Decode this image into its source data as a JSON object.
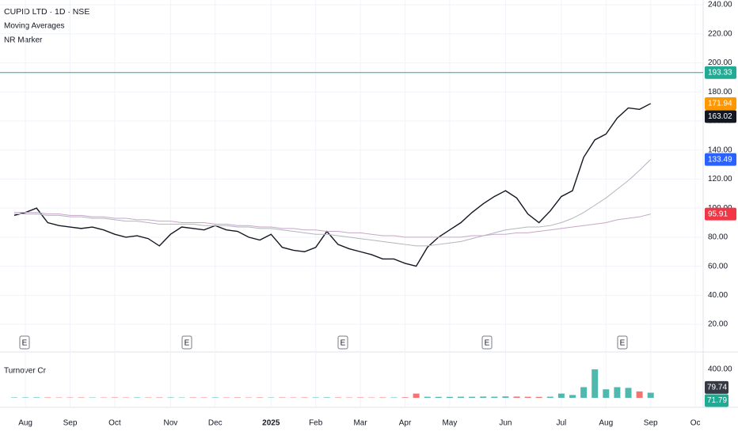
{
  "chart_data": {
    "type": "stock",
    "title": "CUPID LTD · 1D · NSE",
    "indicators": [
      "Moving Averages",
      "NR Marker"
    ],
    "categories": [
      null,
      "Aug",
      null,
      null,
      null,
      "Sep",
      null,
      null,
      null,
      "Oct",
      null,
      null,
      null,
      null,
      "Nov",
      null,
      null,
      null,
      "Dec",
      null,
      null,
      null,
      null,
      "2025",
      null,
      null,
      null,
      "Feb",
      null,
      null,
      null,
      "Mar",
      null,
      null,
      null,
      "Apr",
      null,
      null,
      null,
      "May",
      null,
      null,
      null,
      null,
      "Jun",
      null,
      null,
      null,
      null,
      "Jul",
      null,
      null,
      null,
      "Aug",
      null,
      null,
      null,
      "Sep",
      null,
      null,
      null,
      "Oc"
    ],
    "series": [
      {
        "color": "#131722",
        "values": [
          95,
          97,
          100,
          90,
          88,
          87,
          86,
          87,
          85,
          82,
          80,
          81,
          79,
          74,
          82,
          87,
          86,
          85,
          88,
          85,
          84,
          80,
          78,
          82,
          73,
          71,
          70,
          73,
          84,
          75,
          72,
          70,
          68,
          65,
          65,
          62,
          60,
          73,
          80,
          85,
          90,
          97,
          103,
          108,
          112,
          107,
          96,
          90,
          98,
          108,
          112,
          135,
          147,
          151,
          162,
          169,
          168,
          172,
          null,
          null,
          null,
          null
        ]
      },
      {
        "color": "#b2b5be",
        "values": [
          96,
          96,
          96,
          95,
          95,
          94,
          94,
          93,
          93,
          92,
          91,
          91,
          90,
          89,
          89,
          89,
          89,
          88,
          88,
          88,
          87,
          87,
          86,
          86,
          85,
          84,
          83,
          82,
          82,
          81,
          80,
          79,
          78,
          77,
          76,
          75,
          74,
          74,
          75,
          76,
          77,
          79,
          81,
          83,
          85,
          86,
          87,
          87,
          88,
          90,
          93,
          97,
          102,
          107,
          113,
          119,
          126,
          133.49,
          null,
          null,
          null,
          null
        ]
      },
      {
        "color": "#c7a6c9",
        "values": [
          97,
          97,
          97,
          96,
          96,
          95,
          95,
          94,
          94,
          93,
          93,
          92,
          92,
          91,
          91,
          90,
          90,
          90,
          89,
          89,
          88,
          88,
          87,
          87,
          86,
          86,
          85,
          85,
          84,
          84,
          83,
          83,
          82,
          81,
          81,
          80,
          80,
          80,
          80,
          80,
          80,
          81,
          81,
          82,
          82,
          83,
          83,
          84,
          85,
          86,
          87,
          88,
          89,
          90,
          92,
          93,
          94,
          95.91,
          null,
          null,
          null,
          null
        ]
      }
    ],
    "ylim": [
      3.7,
      243.3
    ],
    "yticks": [
      {
        "value": 240,
        "label": "240.00"
      },
      {
        "value": 220,
        "label": "220.00"
      },
      {
        "value": 200,
        "label": "200.00"
      },
      {
        "value": 180,
        "label": "180.00"
      },
      {
        "value": 160,
        "label": "160.00"
      },
      {
        "value": 140,
        "label": "140.00"
      },
      {
        "value": 120,
        "label": "120.00"
      },
      {
        "value": 100,
        "label": "100.00"
      },
      {
        "value": 80,
        "label": "80.00"
      },
      {
        "value": 60,
        "label": "60.00"
      },
      {
        "value": 40,
        "label": "40.00"
      },
      {
        "value": 20,
        "label": "20.00"
      }
    ],
    "price_labels": [
      {
        "value": 193.33,
        "label": "193.33",
        "color": "#22ab94"
      },
      {
        "value": 171.94,
        "label": "171.94",
        "color": "#ff9800"
      },
      {
        "value": 163.02,
        "label": "163.02",
        "color": "#131722"
      },
      {
        "value": 133.49,
        "label": "133.49",
        "color": "#2962ff"
      },
      {
        "value": 95.91,
        "label": "95.91",
        "color": "#f23645"
      }
    ],
    "earnings_markers": [
      "E",
      "E",
      "E",
      "E",
      "E"
    ],
    "turnover": {
      "title": "Turnover Cr",
      "values": [
        6,
        6,
        7,
        6,
        5,
        5,
        6,
        5,
        5,
        6,
        5,
        6,
        5,
        6,
        6,
        5,
        6,
        5,
        6,
        5,
        6,
        5,
        6,
        5,
        6,
        5,
        6,
        6,
        7,
        6,
        5,
        6,
        5,
        6,
        6,
        8,
        60,
        15,
        14,
        14,
        16,
        15,
        18,
        16,
        20,
        18,
        15,
        14,
        16,
        60,
        40,
        150,
        400,
        120,
        150,
        140,
        90,
        72,
        null,
        null,
        null,
        null
      ],
      "ylim": [
        -133,
        700
      ],
      "yticks": [
        {
          "value": 400,
          "label": "400.00"
        }
      ],
      "last_labels": [
        {
          "value": 79.74,
          "label": "79.74",
          "color": "#363a45"
        },
        {
          "value": 71.79,
          "label": "71.79",
          "color": "#22ab94"
        }
      ]
    }
  }
}
